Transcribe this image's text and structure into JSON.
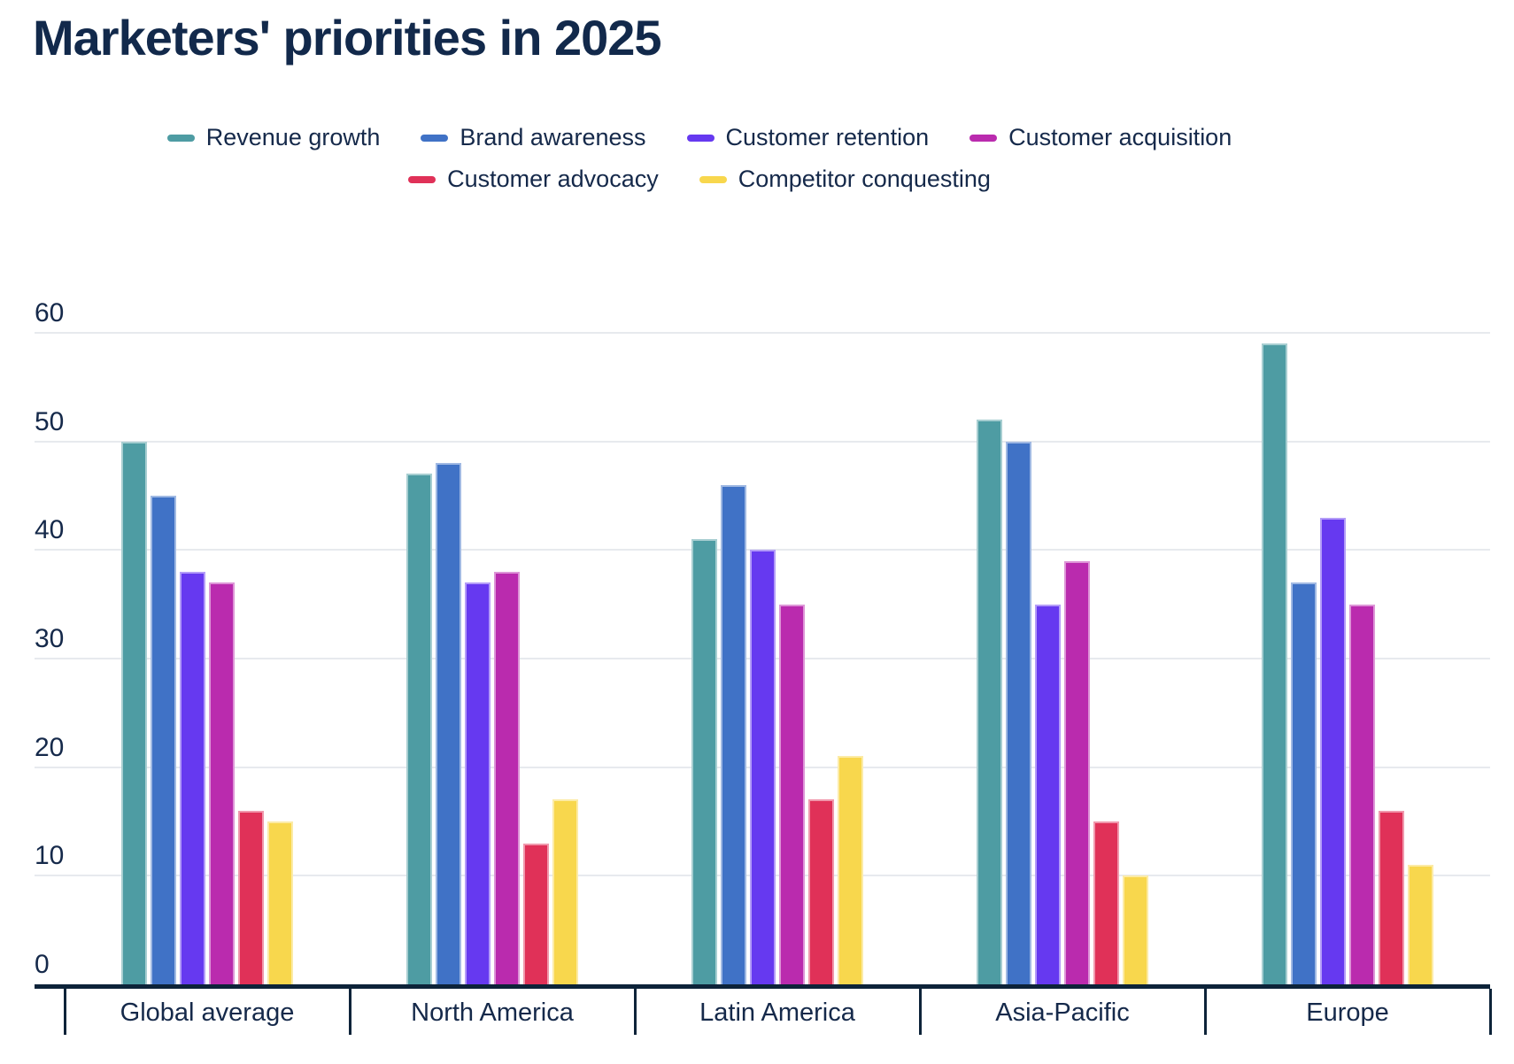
{
  "title": "Marketers' priorities in 2025",
  "chart_data": {
    "type": "bar",
    "title": "Marketers' priorities in 2025",
    "categories": [
      "Global average",
      "North America",
      "Latin America",
      "Asia-Pacific",
      "Europe"
    ],
    "series": [
      {
        "name": "Revenue growth",
        "color": "#4E9CA3",
        "values": [
          50,
          47,
          41,
          52,
          59
        ]
      },
      {
        "name": "Brand awareness",
        "color": "#4072C6",
        "values": [
          45,
          48,
          46,
          50,
          37
        ]
      },
      {
        "name": "Customer retention",
        "color": "#6639F0",
        "values": [
          38,
          37,
          40,
          35,
          43
        ]
      },
      {
        "name": "Customer acquisition",
        "color": "#BA2BAE",
        "values": [
          37,
          38,
          35,
          39,
          35
        ]
      },
      {
        "name": "Customer advocacy",
        "color": "#E03158",
        "values": [
          16,
          13,
          17,
          15,
          16
        ]
      },
      {
        "name": "Competitor conquesting",
        "color": "#F8D74D",
        "values": [
          15,
          17,
          21,
          10,
          11
        ]
      }
    ],
    "xlabel": "",
    "ylabel": "",
    "ylim": [
      0,
      60
    ],
    "y_ticks": [
      0,
      10,
      20,
      30,
      40,
      50,
      60
    ],
    "grid": true,
    "legend_position": "top-center",
    "legend_rows": [
      4,
      2
    ]
  },
  "colors": {
    "text": "#15294A",
    "axis": "#0D2339",
    "grid": "#E7EAEE",
    "background": "#FFFFFF"
  }
}
